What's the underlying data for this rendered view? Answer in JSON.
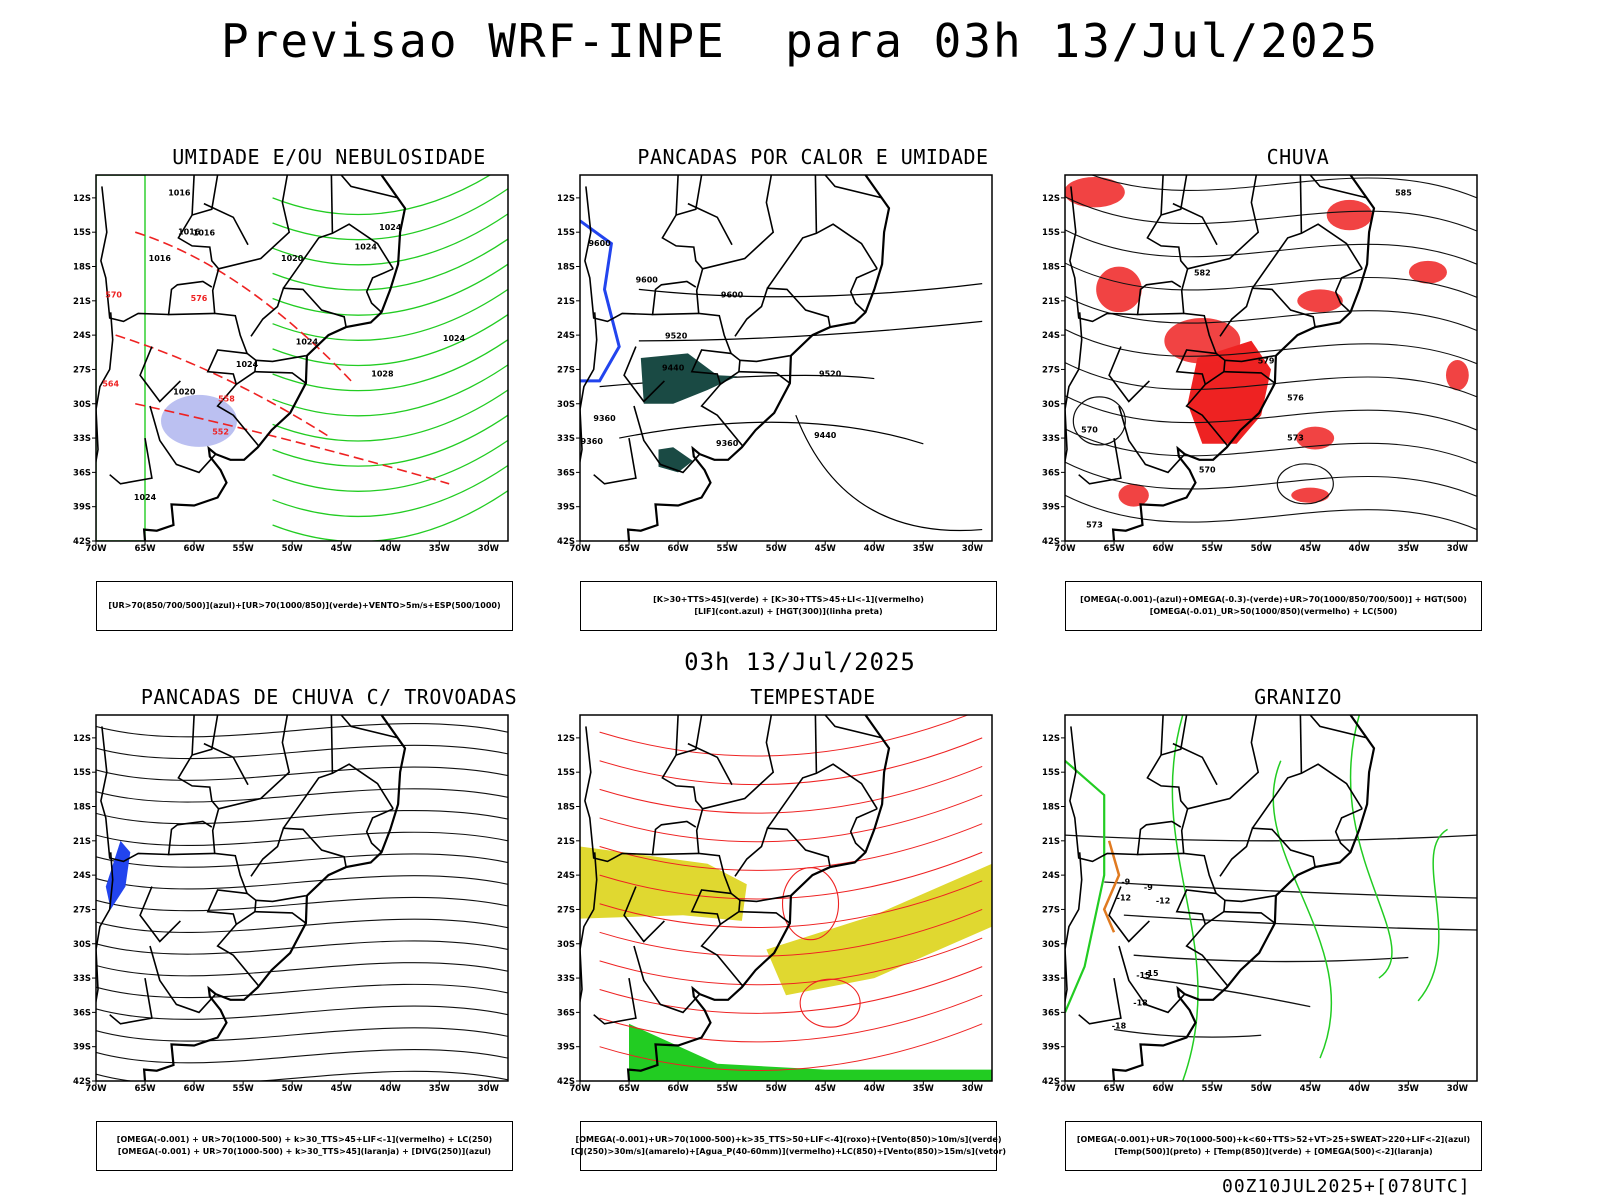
{
  "title": "Previsao WRF-INPE  para 03h 13/Jul/2025",
  "subtitle": "03h 13/Jul/2025",
  "footer": "00Z10JUL2025+[078UTC]",
  "axes": {
    "lat_labels": [
      "12S",
      "15S",
      "18S",
      "21S",
      "24S",
      "27S",
      "30S",
      "33S",
      "36S",
      "39S",
      "42S"
    ],
    "lon_labels": [
      "70W",
      "65W",
      "60W",
      "55W",
      "50W",
      "45W",
      "40W",
      "35W",
      "30W"
    ]
  },
  "colors": {
    "green": "#22cc22",
    "red": "#ee2222",
    "blue": "#2244ee",
    "lavender": "#aab0ee",
    "yellow": "#e0d830",
    "darkgreen": "#1a4a44",
    "orange": "#e07a20"
  },
  "panels": [
    {
      "title": "UMIDADE E/OU NEBULOSIDADE",
      "legend": [
        "[UR>70(850/700/500)](azul)+[UR>70(1000/850)](verde)+VENTO>5m/s+ESP(500/1000)"
      ],
      "labels": [
        "1016",
        "1016",
        "1016",
        "1016",
        "1020",
        "1020",
        "1024",
        "1024",
        "1024",
        "1024",
        "1024",
        "1024",
        "1028",
        "576",
        "570",
        "564",
        "558",
        "552"
      ]
    },
    {
      "title": "PANCADAS POR CALOR E UMIDADE",
      "legend": [
        "[K>30+TTS>45](verde) + [K>30+TTS>45+LI<-1](vermelho)",
        "[LIF](cont.azul) + [HGT(300)](linha preta)"
      ],
      "labels": [
        "9600",
        "9600",
        "9600",
        "9520",
        "9520",
        "9440",
        "9440",
        "9360",
        "9360",
        "9360"
      ]
    },
    {
      "title": "CHUVA",
      "legend": [
        "[OMEGA(-0.001)-(azul)+OMEGA(-0.3)-(verde)+UR>70(1000/850/700/500)] + HGT(500)",
        "[OMEGA(-0.01)_UR>50(1000/850)(vermelho) + LC(500)"
      ],
      "labels": [
        "585",
        "582",
        "579",
        "576",
        "573",
        "570",
        "570",
        "573"
      ]
    },
    {
      "title": "PANCADAS DE CHUVA C/ TROVOADAS",
      "legend": [
        "[OMEGA(-0.001) + UR>70(1000-500) + k>30_TTS>45+LIF<-1](vermelho) + LC(250)",
        "[OMEGA(-0.001) + UR>70(1000-500) + k>30_TTS>45](laranja) + [DIVG(250)](azul)"
      ],
      "labels": []
    },
    {
      "title": "TEMPESTADE",
      "legend": [
        "[OMEGA(-0.001)+UR>70(1000-500)+k>35_TTS>50+LIF<-4](roxo)+[Vento(850)>10m/s](verde)",
        "[CJ(250)>30m/s](amarelo)+[Agua_P(40-60mm)](vermelho)+LC(850)+[Vento(850)>15m/s](vetor)"
      ],
      "labels": []
    },
    {
      "title": "GRANIZO",
      "legend": [
        "[OMEGA(-0.001)+UR>70(1000-500)+k<60+TTS>52+VT>25+SWEAT>220+LIF<-2](azul)",
        "[Temp(500)](preto) + [Temp(850)](verde) + [OMEGA(500)<-2](laranja)"
      ],
      "labels": [
        "-9",
        "-9",
        "-12",
        "-12",
        "-15",
        "-15",
        "-18",
        "-18"
      ]
    }
  ]
}
